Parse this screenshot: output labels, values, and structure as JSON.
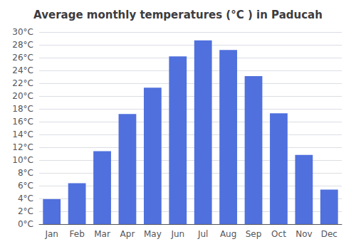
{
  "chart_data": {
    "type": "bar",
    "title": "Average monthly temperatures (°C ) in Paducah",
    "categories": [
      "Jan",
      "Feb",
      "Mar",
      "Apr",
      "May",
      "Jun",
      "Jul",
      "Aug",
      "Sep",
      "Oct",
      "Nov",
      "Dec"
    ],
    "values": [
      3.9,
      6.4,
      11.4,
      17.2,
      21.3,
      26.2,
      28.7,
      27.2,
      23.1,
      17.3,
      10.8,
      5.4
    ],
    "ylim": [
      0,
      30
    ],
    "yticks": [
      {
        "value": 0,
        "label": "0°C"
      },
      {
        "value": 2,
        "label": "2°C"
      },
      {
        "value": 4,
        "label": "4°C"
      },
      {
        "value": 6,
        "label": "6°C"
      },
      {
        "value": 8,
        "label": "8°C"
      },
      {
        "value": 10,
        "label": "10°C"
      },
      {
        "value": 12,
        "label": "12°C"
      },
      {
        "value": 14,
        "label": "14°C"
      },
      {
        "value": 16,
        "label": "16°C"
      },
      {
        "value": 18,
        "label": "18°C"
      },
      {
        "value": 20,
        "label": "20°C"
      },
      {
        "value": 22,
        "label": "22°C"
      },
      {
        "value": 24,
        "label": "24°C"
      },
      {
        "value": 26,
        "label": "26°C"
      },
      {
        "value": 28,
        "label": "28°C"
      },
      {
        "value": 30,
        "label": "30°C"
      }
    ],
    "grid": true
  }
}
